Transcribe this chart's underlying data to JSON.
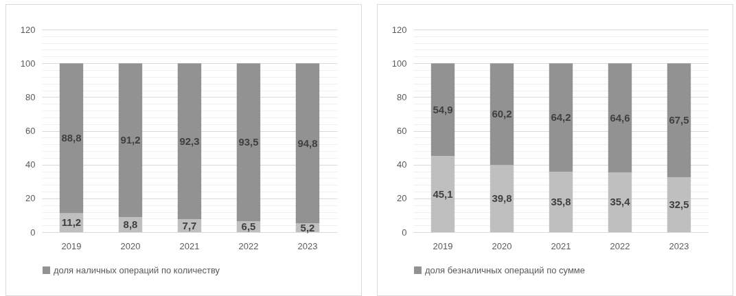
{
  "chart_data": [
    {
      "type": "bar",
      "stacked": true,
      "categories": [
        "2019",
        "2020",
        "2021",
        "2022",
        "2023"
      ],
      "series": [
        {
          "color": "#bfbfbf",
          "values": [
            11.2,
            8.8,
            7.7,
            6.5,
            5.2
          ],
          "value_labels": [
            "11,2",
            "8,8",
            "7,7",
            "6,5",
            "5,2"
          ]
        },
        {
          "name": "доля наличных операций по количеству",
          "color": "#929292",
          "values": [
            88.8,
            91.2,
            92.3,
            93.5,
            94.8
          ],
          "value_labels": [
            "88,8",
            "91,2",
            "92,3",
            "93,5",
            "94,8"
          ]
        }
      ],
      "ylim": [
        0,
        120
      ],
      "yticks": [
        0,
        {
          "value": 4,
          "label": null
        },
        {
          "value": 8,
          "label": null
        },
        {
          "value": 12,
          "label": null
        },
        {
          "value": 16,
          "label": null
        },
        20,
        {
          "value": 24,
          "label": null
        },
        {
          "value": 28,
          "label": null
        },
        {
          "value": 32,
          "label": null
        },
        {
          "value": 36,
          "label": null
        },
        40,
        {
          "value": 44,
          "label": null
        },
        {
          "value": 48,
          "label": null
        },
        {
          "value": 52,
          "label": null
        },
        {
          "value": 56,
          "label": null
        },
        60,
        {
          "value": 64,
          "label": null
        },
        {
          "value": 68,
          "label": null
        },
        {
          "value": 72,
          "label": null
        },
        {
          "value": 76,
          "label": null
        },
        80,
        {
          "value": 84,
          "label": null
        },
        {
          "value": 88,
          "label": null
        },
        {
          "value": 92,
          "label": null
        },
        {
          "value": 96,
          "label": null
        },
        100,
        {
          "value": 104,
          "label": null
        },
        {
          "value": 108,
          "label": null
        },
        {
          "value": 112,
          "label": null
        },
        {
          "value": 116,
          "label": null
        },
        120
      ],
      "grid": "y",
      "legend": "bottom"
    },
    {
      "type": "bar",
      "stacked": true,
      "categories": [
        "2019",
        "2020",
        "2021",
        "2022",
        "2023"
      ],
      "series": [
        {
          "color": "#bfbfbf",
          "values": [
            45.1,
            39.8,
            35.8,
            35.4,
            32.5
          ],
          "value_labels": [
            "45,1",
            "39,8",
            "35,8",
            "35,4",
            "32,5"
          ]
        },
        {
          "name": "доля безналичных операций по сумме",
          "color": "#929292",
          "values": [
            54.9,
            60.2,
            64.2,
            64.6,
            67.5
          ],
          "value_labels": [
            "54,9",
            "60,2",
            "64,2",
            "64,6",
            "67,5"
          ]
        }
      ],
      "ylim": [
        0,
        120
      ],
      "yticks": [
        0,
        {
          "value": 4,
          "label": null
        },
        {
          "value": 8,
          "label": null
        },
        {
          "value": 12,
          "label": null
        },
        {
          "value": 16,
          "label": null
        },
        20,
        {
          "value": 24,
          "label": null
        },
        {
          "value": 28,
          "label": null
        },
        {
          "value": 32,
          "label": null
        },
        {
          "value": 36,
          "label": null
        },
        40,
        {
          "value": 44,
          "label": null
        },
        {
          "value": 48,
          "label": null
        },
        {
          "value": 52,
          "label": null
        },
        {
          "value": 56,
          "label": null
        },
        60,
        {
          "value": 64,
          "label": null
        },
        {
          "value": 68,
          "label": null
        },
        {
          "value": 72,
          "label": null
        },
        {
          "value": 76,
          "label": null
        },
        80,
        {
          "value": 84,
          "label": null
        },
        {
          "value": 88,
          "label": null
        },
        {
          "value": 92,
          "label": null
        },
        {
          "value": 96,
          "label": null
        },
        100,
        {
          "value": 104,
          "label": null
        },
        {
          "value": 108,
          "label": null
        },
        {
          "value": 112,
          "label": null
        },
        {
          "value": 116,
          "label": null
        },
        120
      ],
      "grid": "y",
      "legend": "bottom"
    }
  ]
}
